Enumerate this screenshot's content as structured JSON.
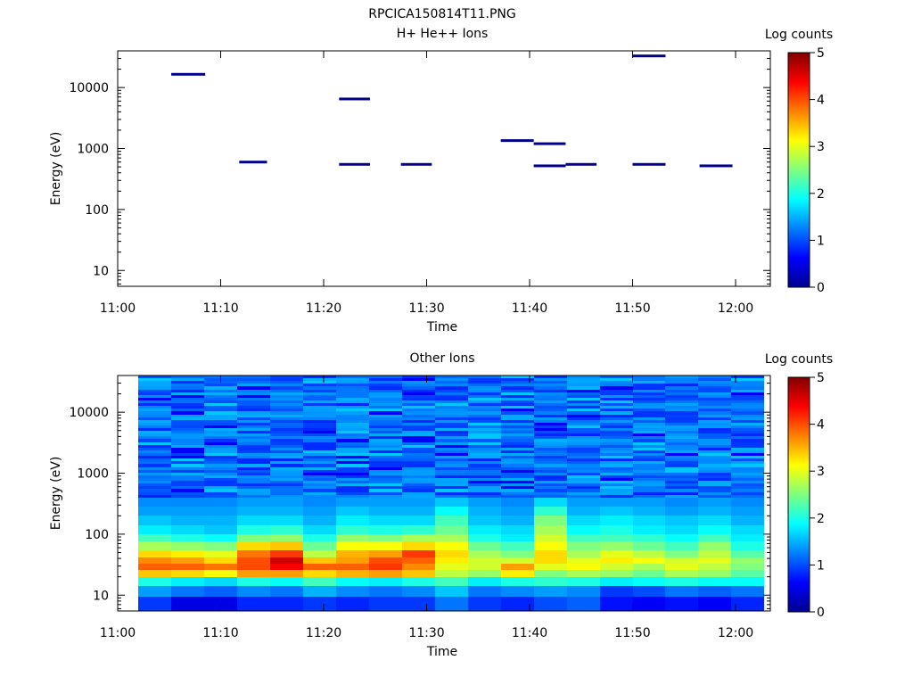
{
  "figure_title": "RPCICA150814T11.PNG",
  "chart_data": [
    {
      "type": "heatmap",
      "title": "H+ He++ Ions",
      "xlabel": "Time",
      "ylabel": "Energy (eV)",
      "y_scale": "log",
      "xticks": [
        "11:00",
        "11:10",
        "11:20",
        "11:30",
        "11:40",
        "11:50",
        "12:00"
      ],
      "yticks": [
        "10",
        "100",
        "1000",
        "10000"
      ],
      "xlim_min": [
        0,
        63
      ],
      "ylim_eV": [
        5.5,
        40000
      ],
      "colorbar": {
        "label": "Log counts",
        "range": [
          0,
          5
        ],
        "ticks": [
          "0",
          "1",
          "2",
          "3",
          "4",
          "5"
        ]
      },
      "note": "sparse single-energy bins, log counts ≈ 0 (dark blue)",
      "segments": [
        {
          "t0": 5.2,
          "t1": 8.5,
          "energy": 16500,
          "log_counts": 0.05
        },
        {
          "t0": 11.8,
          "t1": 14.5,
          "energy": 600,
          "log_counts": 0.05
        },
        {
          "t0": 21.5,
          "t1": 24.5,
          "energy": 6500,
          "log_counts": 0.05
        },
        {
          "t0": 21.5,
          "t1": 24.5,
          "energy": 550,
          "log_counts": 0.05
        },
        {
          "t0": 27.5,
          "t1": 30.5,
          "energy": 550,
          "log_counts": 0.05
        },
        {
          "t0": 37.2,
          "t1": 40.4,
          "energy": 1350,
          "log_counts": 0.05
        },
        {
          "t0": 40.4,
          "t1": 43.5,
          "energy": 1200,
          "log_counts": 0.05
        },
        {
          "t0": 40.4,
          "t1": 43.5,
          "energy": 520,
          "log_counts": 0.05
        },
        {
          "t0": 43.5,
          "t1": 46.5,
          "energy": 550,
          "log_counts": 0.05
        },
        {
          "t0": 50.0,
          "t1": 53.2,
          "energy": 33000,
          "log_counts": 0.05
        },
        {
          "t0": 50.0,
          "t1": 53.2,
          "energy": 550,
          "log_counts": 0.05
        },
        {
          "t0": 56.5,
          "t1": 59.7,
          "energy": 520,
          "log_counts": 0.05
        }
      ]
    },
    {
      "type": "heatmap",
      "title": "Other Ions",
      "xlabel": "Time",
      "ylabel": "Energy (eV)",
      "y_scale": "log",
      "xticks": [
        "11:00",
        "11:10",
        "11:20",
        "11:30",
        "11:40",
        "11:50",
        "12:00"
      ],
      "yticks": [
        "10",
        "100",
        "1000",
        "10000"
      ],
      "xlim_min": [
        0,
        63
      ],
      "ylim_eV": [
        5.5,
        40000
      ],
      "colorbar": {
        "label": "Log counts",
        "range": [
          0,
          5
        ],
        "ticks": [
          "0",
          "1",
          "2",
          "3",
          "4",
          "5"
        ]
      },
      "time_start_min": 2.0,
      "time_bin_min": 3.2,
      "energy_bands": [
        {
          "low": 5.5,
          "high": 9.5
        },
        {
          "low": 9.5,
          "high": 14
        },
        {
          "low": 14,
          "high": 20
        },
        {
          "low": 20,
          "high": 26
        },
        {
          "low": 26,
          "high": 33
        },
        {
          "low": 33,
          "high": 42
        },
        {
          "low": 42,
          "high": 55
        },
        {
          "low": 55,
          "high": 75
        },
        {
          "low": 75,
          "high": 100
        },
        {
          "low": 100,
          "high": 140
        },
        {
          "low": 140,
          "high": 200
        },
        {
          "low": 200,
          "high": 280
        },
        {
          "low": 280,
          "high": 400
        }
      ],
      "low_band_log_counts": [
        [
          0.9,
          0.5,
          0.5,
          0.8,
          0.8,
          0.9,
          0.8,
          0.9,
          0.9,
          1.2,
          0.9,
          0.8,
          1.0,
          1.1,
          0.7,
          0.6,
          0.7,
          0.6,
          0.8
        ],
        [
          1.4,
          1.2,
          1.1,
          1.3,
          1.2,
          1.5,
          1.3,
          1.2,
          1.3,
          1.6,
          1.2,
          1.3,
          1.4,
          1.3,
          0.9,
          1.0,
          1.2,
          1.1,
          1.2
        ],
        [
          2.0,
          1.8,
          1.7,
          2.0,
          1.9,
          2.2,
          1.9,
          1.8,
          2.0,
          2.2,
          1.8,
          2.0,
          2.1,
          2.0,
          1.8,
          1.9,
          2.0,
          1.9,
          1.9
        ],
        [
          3.4,
          3.3,
          3.1,
          3.6,
          3.6,
          3.3,
          3.5,
          3.6,
          3.4,
          2.8,
          2.6,
          3.2,
          2.5,
          2.7,
          2.6,
          2.4,
          2.7,
          2.6,
          2.3
        ],
        [
          3.9,
          3.9,
          3.8,
          4.0,
          4.4,
          3.9,
          3.9,
          4.1,
          3.7,
          3.0,
          2.9,
          3.6,
          3.0,
          3.1,
          2.9,
          2.7,
          3.0,
          2.8,
          2.5
        ],
        [
          3.7,
          3.6,
          3.3,
          4.0,
          4.6,
          3.4,
          3.6,
          4.0,
          3.9,
          3.2,
          2.9,
          2.9,
          3.3,
          3.0,
          3.2,
          3.1,
          2.9,
          3.0,
          2.6
        ],
        [
          3.3,
          3.2,
          3.0,
          3.8,
          4.1,
          2.8,
          3.5,
          3.6,
          4.1,
          3.3,
          2.7,
          2.5,
          3.3,
          2.7,
          3.0,
          2.8,
          2.5,
          2.8,
          2.3
        ],
        [
          2.7,
          2.6,
          2.5,
          3.3,
          3.4,
          2.4,
          3.1,
          3.1,
          3.3,
          3.1,
          2.4,
          2.2,
          3.1,
          2.5,
          2.6,
          2.4,
          2.2,
          2.6,
          2.0
        ],
        [
          2.2,
          2.0,
          1.9,
          2.5,
          2.6,
          2.0,
          2.6,
          2.5,
          2.7,
          2.7,
          2.0,
          1.8,
          2.9,
          2.2,
          2.2,
          2.1,
          1.9,
          2.2,
          1.8
        ],
        [
          1.8,
          1.7,
          1.6,
          2.0,
          2.1,
          1.7,
          2.1,
          2.0,
          2.1,
          2.4,
          1.8,
          1.7,
          2.7,
          1.9,
          2.0,
          1.8,
          1.7,
          1.9,
          1.7
        ],
        [
          1.6,
          1.5,
          1.5,
          1.7,
          1.7,
          1.5,
          1.8,
          1.7,
          1.7,
          2.2,
          1.6,
          1.5,
          2.5,
          1.7,
          1.8,
          1.7,
          1.6,
          1.7,
          1.5
        ],
        [
          1.4,
          1.4,
          1.4,
          1.5,
          1.5,
          1.4,
          1.6,
          1.5,
          1.5,
          1.9,
          1.5,
          1.4,
          2.1,
          1.5,
          1.6,
          1.5,
          1.4,
          1.5,
          1.4
        ],
        [
          1.3,
          1.3,
          1.3,
          1.4,
          1.4,
          1.3,
          1.4,
          1.4,
          1.4,
          1.6,
          1.4,
          1.3,
          1.7,
          1.4,
          1.4,
          1.4,
          1.3,
          1.4,
          1.3
        ]
      ],
      "high_energy_background": {
        "energy_range_eV": [
          400,
          40000
        ],
        "log_counts_range": [
          0.6,
          1.6
        ],
        "typical_log_counts": 1.15
      }
    }
  ]
}
